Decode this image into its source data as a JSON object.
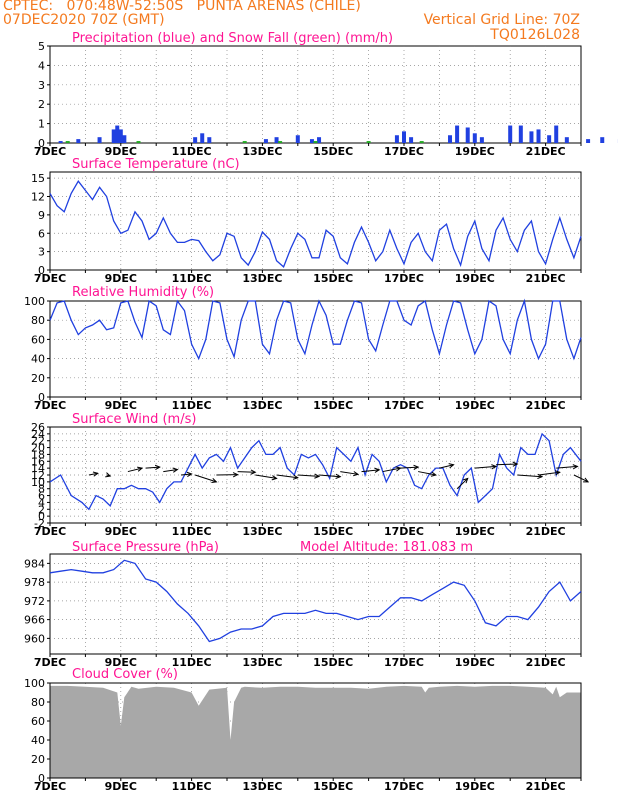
{
  "header": {
    "source": "CPTEC:",
    "coords": "070:48W-52:50S",
    "station": "PUNTA ARENAS (CHILE)",
    "run": "07DEC2020 70Z (GMT)",
    "grid_note": "Vertical Grid Line: 70Z",
    "code": "TQ0126L028"
  },
  "colors": {
    "header": "#f47a1f",
    "title": "#ff1493",
    "line": "#2040e0",
    "snow": "#22aa22",
    "cloud": "#a8a8a8",
    "wind": "#000000"
  },
  "x_labels": [
    "7DEC",
    "9DEC",
    "11DEC",
    "13DEC",
    "15DEC",
    "17DEC",
    "19DEC",
    "21DEC"
  ],
  "chart_data": [
    {
      "id": "precip",
      "type": "bar",
      "title": "Precipitation (blue) and Snow Fall (green) (mm/h)",
      "ylim": [
        0,
        5
      ],
      "yticks": [
        0,
        1,
        2,
        3,
        4,
        5
      ],
      "series": [
        {
          "name": "Precipitation",
          "x": [
            0.3,
            0.8,
            1.4,
            1.8,
            1.9,
            2.0,
            2.1,
            4.1,
            4.3,
            4.5,
            6.1,
            6.4,
            7.0,
            7.4,
            7.6,
            9.8,
            10.0,
            10.2,
            11.3,
            11.5,
            11.8,
            12.0,
            12.2,
            13.0,
            13.3,
            13.6,
            13.8,
            14.1,
            14.3,
            14.6,
            15.2,
            15.6,
            16.1,
            16.4,
            17.0,
            17.3,
            17.6,
            17.9,
            18.1,
            18.3
          ],
          "values": [
            0.1,
            0.2,
            0.3,
            0.7,
            0.9,
            0.7,
            0.4,
            0.3,
            0.5,
            0.3,
            0.2,
            0.3,
            0.4,
            0.2,
            0.3,
            0.4,
            0.6,
            0.3,
            0.4,
            0.9,
            0.8,
            0.5,
            0.3,
            0.9,
            0.9,
            0.6,
            0.7,
            0.4,
            0.9,
            0.3,
            0.2,
            0.3,
            0.2,
            0.3,
            0.3,
            0.5,
            0.4,
            0.3,
            0.8,
            0.5
          ]
        },
        {
          "name": "Snow Fall",
          "x": [
            0.5,
            2.5,
            5.5,
            6.5,
            7.5,
            9.0,
            10.5
          ],
          "values": [
            0.1,
            0.1,
            0.1,
            0.1,
            0.1,
            0.1,
            0.1
          ]
        }
      ]
    },
    {
      "id": "temp",
      "type": "line",
      "title": "Surface Temperature (nC)",
      "ylim": [
        0,
        16
      ],
      "yticks": [
        0,
        3,
        6,
        9,
        12,
        15
      ],
      "x": [
        0,
        0.2,
        0.4,
        0.6,
        0.8,
        1.0,
        1.2,
        1.4,
        1.6,
        1.8,
        2.0,
        2.2,
        2.4,
        2.6,
        2.8,
        3.0,
        3.2,
        3.4,
        3.6,
        3.8,
        4.0,
        4.2,
        4.4,
        4.6,
        4.8,
        5.0,
        5.2,
        5.4,
        5.6,
        5.8,
        6.0,
        6.2,
        6.4,
        6.6,
        6.8,
        7.0,
        7.2,
        7.4,
        7.6,
        7.8,
        8.0,
        8.2,
        8.4,
        8.6,
        8.8,
        9.0,
        9.2,
        9.4,
        9.6,
        9.8,
        10.0,
        10.2,
        10.4,
        10.6,
        10.8,
        11.0,
        11.2,
        11.4,
        11.6,
        11.8,
        12.0,
        12.2,
        12.4,
        12.6,
        12.8,
        13.0,
        13.2,
        13.4,
        13.6,
        13.8,
        14.0,
        14.2,
        14.4,
        14.6,
        14.8,
        15.0
      ],
      "values": [
        12.5,
        10.5,
        9.5,
        12.5,
        14.5,
        13.0,
        11.5,
        13.5,
        12.0,
        8.0,
        6.0,
        6.5,
        9.5,
        8.0,
        5.0,
        6.0,
        8.5,
        6.0,
        4.5,
        4.5,
        5.0,
        4.8,
        3.0,
        1.5,
        2.5,
        6.0,
        5.5,
        2.0,
        0.8,
        3.0,
        6.2,
        5.0,
        1.5,
        0.5,
        3.5,
        6.0,
        5.0,
        2.0,
        2.0,
        6.5,
        5.5,
        2.0,
        1.0,
        4.5,
        7.0,
        4.5,
        1.5,
        3.0,
        6.5,
        3.5,
        1.0,
        4.5,
        6.0,
        3.0,
        1.5,
        6.5,
        7.5,
        3.5,
        0.8,
        5.5,
        8.0,
        3.5,
        1.5,
        6.5,
        8.5,
        5.0,
        3.0,
        6.5,
        8.0,
        3.0,
        1.0,
        5.0,
        8.5,
        5.0,
        2.0,
        5.5
      ]
    },
    {
      "id": "rh",
      "type": "line",
      "title": "Relative Humidity (%)",
      "ylim": [
        0,
        100
      ],
      "yticks": [
        0,
        20,
        40,
        60,
        80,
        100
      ],
      "x": [
        0,
        0.2,
        0.4,
        0.6,
        0.8,
        1.0,
        1.2,
        1.4,
        1.6,
        1.8,
        2.0,
        2.2,
        2.4,
        2.6,
        2.8,
        3.0,
        3.2,
        3.4,
        3.6,
        3.8,
        4.0,
        4.2,
        4.4,
        4.6,
        4.8,
        5.0,
        5.2,
        5.4,
        5.6,
        5.8,
        6.0,
        6.2,
        6.4,
        6.6,
        6.8,
        7.0,
        7.2,
        7.4,
        7.6,
        7.8,
        8.0,
        8.2,
        8.4,
        8.6,
        8.8,
        9.0,
        9.2,
        9.4,
        9.6,
        9.8,
        10.0,
        10.2,
        10.4,
        10.6,
        10.8,
        11.0,
        11.2,
        11.4,
        11.6,
        11.8,
        12.0,
        12.2,
        12.4,
        12.6,
        12.8,
        13.0,
        13.2,
        13.4,
        13.6,
        13.8,
        14.0,
        14.2,
        14.4,
        14.6,
        14.8,
        15.0
      ],
      "values": [
        80,
        98,
        100,
        80,
        65,
        72,
        75,
        80,
        70,
        72,
        98,
        100,
        78,
        62,
        100,
        95,
        70,
        65,
        100,
        90,
        55,
        40,
        60,
        100,
        98,
        60,
        42,
        80,
        100,
        100,
        55,
        45,
        80,
        100,
        98,
        60,
        45,
        75,
        100,
        85,
        55,
        55,
        80,
        100,
        98,
        60,
        48,
        75,
        100,
        100,
        80,
        75,
        95,
        100,
        70,
        45,
        75,
        100,
        98,
        70,
        45,
        60,
        100,
        95,
        60,
        45,
        80,
        100,
        60,
        40,
        55,
        100,
        100,
        60,
        40,
        62
      ]
    },
    {
      "id": "wind",
      "type": "line",
      "title": "Surface Wind (m/s)",
      "ylim": [
        -2,
        26
      ],
      "yticks": [
        -2,
        0,
        2,
        4,
        6,
        8,
        10,
        12,
        14,
        16,
        18,
        20,
        22,
        24,
        26
      ],
      "x": [
        0,
        0.3,
        0.6,
        0.9,
        1.1,
        1.3,
        1.5,
        1.7,
        1.9,
        2.1,
        2.3,
        2.5,
        2.7,
        2.9,
        3.1,
        3.3,
        3.5,
        3.7,
        3.9,
        4.1,
        4.3,
        4.5,
        4.7,
        4.9,
        5.1,
        5.3,
        5.5,
        5.7,
        5.9,
        6.1,
        6.3,
        6.5,
        6.7,
        6.9,
        7.1,
        7.3,
        7.5,
        7.7,
        7.9,
        8.1,
        8.3,
        8.5,
        8.7,
        8.9,
        9.1,
        9.3,
        9.5,
        9.7,
        9.9,
        10.1,
        10.3,
        10.5,
        10.7,
        10.9,
        11.1,
        11.3,
        11.5,
        11.7,
        11.9,
        12.1,
        12.3,
        12.5,
        12.7,
        12.9,
        13.1,
        13.3,
        13.5,
        13.7,
        13.9,
        14.1,
        14.3,
        14.5,
        14.7,
        15.0
      ],
      "values": [
        10,
        12,
        6,
        4,
        2,
        6,
        5,
        3,
        8,
        8,
        9,
        8,
        8,
        7,
        4,
        8,
        10,
        10,
        14,
        18,
        14,
        17,
        18,
        16,
        20,
        14,
        17,
        20,
        22,
        18,
        18,
        20,
        14,
        12,
        18,
        17,
        18,
        15,
        11,
        20,
        18,
        16,
        20,
        12,
        18,
        16,
        10,
        14,
        15,
        14,
        9,
        8,
        12,
        14,
        14,
        9,
        6,
        12,
        14,
        4,
        6,
        8,
        18,
        14,
        12,
        20,
        18,
        18,
        24,
        22,
        12,
        18,
        20,
        16
      ],
      "vectors": [
        {
          "x": 1.1,
          "y": 12,
          "dx": 0.25,
          "dy": 0.5
        },
        {
          "x": 1.6,
          "y": 12,
          "dx": 0.1,
          "dy": -0.3
        },
        {
          "x": 2.2,
          "y": 13,
          "dx": 0.4,
          "dy": 1.0
        },
        {
          "x": 2.7,
          "y": 14,
          "dx": 0.4,
          "dy": 0.3
        },
        {
          "x": 3.2,
          "y": 13,
          "dx": 0.4,
          "dy": 0.6
        },
        {
          "x": 3.7,
          "y": 12,
          "dx": 0.3,
          "dy": 0.3
        },
        {
          "x": 4.1,
          "y": 12,
          "dx": 0.6,
          "dy": -2.0
        },
        {
          "x": 4.7,
          "y": 12,
          "dx": 0.6,
          "dy": 0.1
        },
        {
          "x": 5.3,
          "y": 13,
          "dx": 0.5,
          "dy": -0.2
        },
        {
          "x": 5.8,
          "y": 12,
          "dx": 0.6,
          "dy": -1.0
        },
        {
          "x": 6.4,
          "y": 12,
          "dx": 0.6,
          "dy": -0.8
        },
        {
          "x": 7.0,
          "y": 12,
          "dx": 0.6,
          "dy": -0.4
        },
        {
          "x": 7.6,
          "y": 12,
          "dx": 0.6,
          "dy": -0.5
        },
        {
          "x": 8.2,
          "y": 13,
          "dx": 0.5,
          "dy": -0.8
        },
        {
          "x": 8.8,
          "y": 13,
          "dx": 0.5,
          "dy": 0.5
        },
        {
          "x": 9.4,
          "y": 13,
          "dx": 0.5,
          "dy": 1.0
        },
        {
          "x": 9.9,
          "y": 14,
          "dx": 0.5,
          "dy": 0.3
        },
        {
          "x": 10.4,
          "y": 13,
          "dx": 0.5,
          "dy": -1.0
        },
        {
          "x": 11.0,
          "y": 14,
          "dx": 0.4,
          "dy": 1.0
        },
        {
          "x": 11.5,
          "y": 8,
          "dx": 0.3,
          "dy": 3.0
        },
        {
          "x": 12.0,
          "y": 14,
          "dx": 0.6,
          "dy": 0.5
        },
        {
          "x": 12.6,
          "y": 15,
          "dx": 0.6,
          "dy": 0.2
        },
        {
          "x": 13.2,
          "y": 12,
          "dx": 0.7,
          "dy": -0.5
        },
        {
          "x": 13.8,
          "y": 12,
          "dx": 0.6,
          "dy": 0.8
        },
        {
          "x": 14.3,
          "y": 14,
          "dx": 0.6,
          "dy": 0.5
        },
        {
          "x": 14.8,
          "y": 12,
          "dx": 0.4,
          "dy": -2.0
        }
      ]
    },
    {
      "id": "pressure",
      "type": "line",
      "title": "Surface Pressure (hPa)",
      "subtitle": "Model Altitude: 181.083 m",
      "ylim": [
        955,
        987
      ],
      "yticks": [
        960,
        966,
        972,
        978,
        984
      ],
      "x": [
        0,
        0.3,
        0.6,
        0.9,
        1.2,
        1.5,
        1.8,
        2.1,
        2.4,
        2.7,
        3.0,
        3.3,
        3.6,
        3.9,
        4.2,
        4.5,
        4.8,
        5.1,
        5.4,
        5.7,
        6.0,
        6.3,
        6.6,
        6.9,
        7.2,
        7.5,
        7.8,
        8.1,
        8.4,
        8.7,
        9.0,
        9.3,
        9.6,
        9.9,
        10.2,
        10.5,
        10.8,
        11.1,
        11.4,
        11.7,
        12.0,
        12.3,
        12.6,
        12.9,
        13.2,
        13.5,
        13.8,
        14.1,
        14.4,
        14.7,
        15.0
      ],
      "values": [
        981,
        981.5,
        982,
        981.5,
        981,
        981,
        982,
        985,
        984,
        979,
        978,
        975,
        971,
        968,
        964,
        959,
        960,
        962,
        963,
        963,
        964,
        967,
        968,
        968,
        968,
        969,
        968,
        968,
        967,
        966,
        967,
        967,
        970,
        973,
        973,
        972,
        974,
        976,
        978,
        977,
        972,
        965,
        964,
        967,
        967,
        966,
        970,
        975,
        978,
        972,
        975
      ]
    },
    {
      "id": "cloud",
      "type": "area",
      "title": "Cloud Cover (%)",
      "ylim": [
        0,
        100
      ],
      "yticks": [
        0,
        20,
        40,
        60,
        80,
        100
      ],
      "x": [
        0,
        0.5,
        1.0,
        1.5,
        1.9,
        2.0,
        2.1,
        2.3,
        2.5,
        3.0,
        3.5,
        4.0,
        4.2,
        4.5,
        5.0,
        5.1,
        5.2,
        5.4,
        5.5,
        6.0,
        6.5,
        7.0,
        7.5,
        8.0,
        8.5,
        9.0,
        9.5,
        10.0,
        10.5,
        10.6,
        10.7,
        11.0,
        11.5,
        12.0,
        12.5,
        13.0,
        13.5,
        14.0,
        14.2,
        14.3,
        14.4,
        14.6,
        15.0
      ],
      "values": [
        97,
        97,
        96,
        95,
        90,
        55,
        85,
        96,
        94,
        96,
        95,
        90,
        76,
        93,
        95,
        40,
        80,
        95,
        96,
        95,
        96,
        96,
        95,
        95,
        95,
        94,
        96,
        97,
        96,
        90,
        95,
        96,
        97,
        96,
        97,
        97,
        96,
        95,
        88,
        96,
        85,
        90,
        90
      ]
    }
  ]
}
